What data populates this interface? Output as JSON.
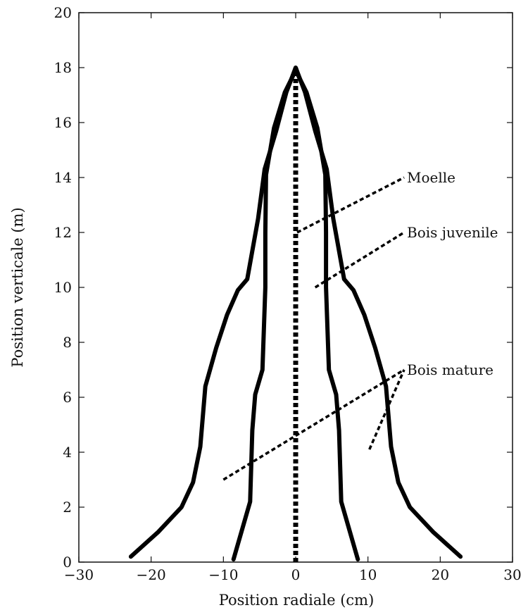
{
  "chart_data": {
    "type": "line",
    "xlabel": "Position radiale (cm)",
    "ylabel": "Position verticale (m)",
    "xlim": [
      -30,
      30
    ],
    "ylim": [
      0,
      20
    ],
    "xticks": [
      -30,
      -20,
      -10,
      0,
      10,
      20,
      30
    ],
    "yticks": [
      0,
      2,
      4,
      6,
      8,
      10,
      12,
      14,
      16,
      18,
      20
    ],
    "xtick_labels": [
      "−30",
      "−20",
      "−10",
      "0",
      "10",
      "20",
      "30"
    ],
    "ytick_labels": [
      "0",
      "2",
      "4",
      "6",
      "8",
      "10",
      "12",
      "14",
      "16",
      "18",
      "20"
    ],
    "grid": false,
    "series": [
      {
        "style": "solid",
        "x": [
          -22.8,
          -19.0,
          -15.8,
          -14.2,
          -13.2,
          -12.5,
          -11.0,
          -9.5,
          -8.0,
          -6.7,
          -5.2,
          -4.3,
          -2.7,
          -1.3,
          0.0,
          1.3,
          2.7,
          4.3,
          5.2,
          6.7,
          8.0,
          9.5,
          11.0,
          12.5,
          13.2,
          14.2,
          15.8,
          19.0,
          22.8
        ],
        "y": [
          0.2,
          1.1,
          2.0,
          2.9,
          4.2,
          6.4,
          7.8,
          9.0,
          9.9,
          10.3,
          12.5,
          14.3,
          15.7,
          17.1,
          18.0,
          17.1,
          15.7,
          14.3,
          12.5,
          10.3,
          9.9,
          9.0,
          7.8,
          6.4,
          4.2,
          2.9,
          2.0,
          1.1,
          0.2
        ]
      },
      {
        "style": "solid",
        "x": [
          -8.6,
          -6.3,
          -6.0,
          -5.6,
          -4.6,
          -4.2,
          -4.2,
          -4.1,
          -3.0,
          -1.5,
          0.0,
          1.5,
          3.0,
          4.1,
          4.2,
          4.2,
          4.6,
          5.6,
          6.0,
          6.3,
          8.6
        ],
        "y": [
          0.1,
          2.2,
          4.8,
          6.1,
          7.0,
          10.0,
          12.0,
          14.1,
          15.8,
          17.1,
          17.9,
          17.1,
          15.8,
          14.1,
          12.0,
          10.0,
          7.0,
          6.1,
          4.8,
          2.2,
          0.1
        ]
      },
      {
        "style": "dotted",
        "x": [
          0.0,
          0.0
        ],
        "y": [
          0.0,
          18.0
        ]
      }
    ],
    "annotations": [
      {
        "text": "Moelle",
        "x": 15.0,
        "y": 14.0,
        "arrow_from": [
          0.2,
          12.0
        ]
      },
      {
        "text": "Bois juvenile",
        "x": 15.0,
        "y": 12.0,
        "arrow_from": [
          2.7,
          10.0
        ]
      },
      {
        "text": "Bois mature",
        "x": 15.0,
        "y": 7.0,
        "arrow_from": [
          -10.0,
          3.0
        ]
      },
      {
        "text": "",
        "x": 15.0,
        "y": 7.0,
        "arrow_from": [
          10.2,
          4.1
        ]
      }
    ]
  }
}
